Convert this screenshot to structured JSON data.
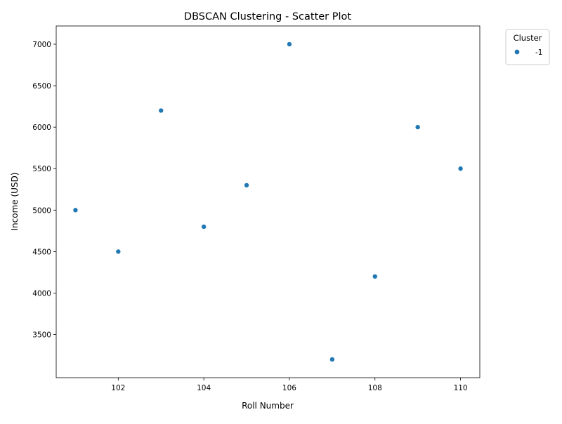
{
  "chart_data": {
    "type": "scatter",
    "title": "DBSCAN Clustering - Scatter Plot",
    "xlabel": "Roll Number",
    "ylabel": "Income (USD)",
    "xlim": [
      100.55,
      110.45
    ],
    "ylim": [
      2980,
      7220
    ],
    "xticks": [
      102,
      104,
      106,
      108,
      110
    ],
    "xtick_labels": [
      "102",
      "104",
      "106",
      "108",
      "110"
    ],
    "yticks": [
      3500,
      4000,
      4500,
      5000,
      5500,
      6000,
      6500,
      7000
    ],
    "ytick_labels": [
      "3500",
      "4000",
      "4500",
      "5000",
      "5500",
      "6000",
      "6500",
      "7000"
    ],
    "grid": false,
    "legend": {
      "title": "Cluster",
      "placement": "outside-top-right",
      "entries": [
        "-1"
      ]
    },
    "series": [
      {
        "name": "-1",
        "color": "#1f77b4",
        "points": [
          {
            "x": 101,
            "y": 5000
          },
          {
            "x": 102,
            "y": 4500
          },
          {
            "x": 103,
            "y": 6200
          },
          {
            "x": 104,
            "y": 4800
          },
          {
            "x": 105,
            "y": 5300
          },
          {
            "x": 106,
            "y": 7000
          },
          {
            "x": 107,
            "y": 3200
          },
          {
            "x": 108,
            "y": 4200
          },
          {
            "x": 109,
            "y": 6000
          },
          {
            "x": 110,
            "y": 5500
          }
        ]
      }
    ]
  }
}
